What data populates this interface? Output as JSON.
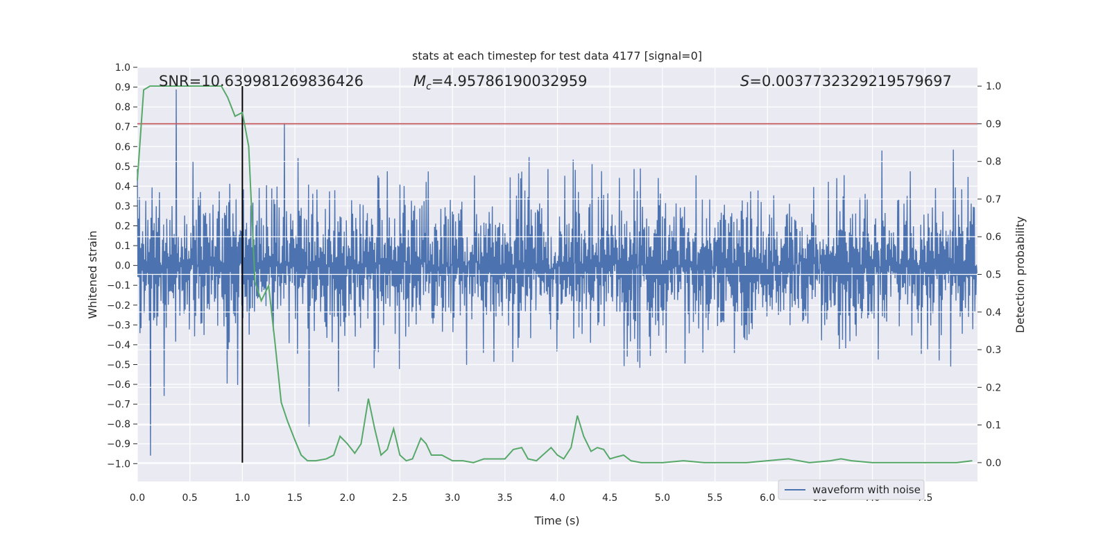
{
  "chart_data": {
    "type": "line",
    "title": "stats at each timestep for test data 4177 [signal=0]",
    "xlabel": "Time (s)",
    "ylabel_left": "Whitened strain",
    "ylabel_right": "Detection probability",
    "xlim": [
      0.0,
      8.0
    ],
    "ylim_left": [
      -1.09,
      1.0
    ],
    "ylim_right": [
      -0.05,
      1.05
    ],
    "x_ticks": [
      0.0,
      0.5,
      1.0,
      1.5,
      2.0,
      2.5,
      3.0,
      3.5,
      4.0,
      4.5,
      5.0,
      5.5,
      6.0,
      6.5,
      7.0,
      7.5
    ],
    "x_tick_labels": [
      "0.0",
      "0.5",
      "1.0",
      "1.5",
      "2.0",
      "2.5",
      "3.0",
      "3.5",
      "4.0",
      "4.5",
      "5.0",
      "5.5",
      "6.0",
      "6.5",
      "7.0",
      "7.5"
    ],
    "y_left_ticks": [
      1.0,
      0.9,
      0.8,
      0.7,
      0.6,
      0.5,
      0.4,
      0.3,
      0.2,
      0.1,
      0.0,
      -0.1,
      -0.2,
      -0.3,
      -0.4,
      -0.5,
      -0.6,
      -0.7,
      -0.8,
      -0.9,
      -1.0
    ],
    "y_left_tick_labels": [
      "1.0",
      "0.9",
      "0.8",
      "0.7",
      "0.6",
      "0.5",
      "0.4",
      "0.3",
      "0.2",
      "0.1",
      "0.0",
      "−0.1",
      "−0.2",
      "−0.3",
      "−0.4",
      "−0.5",
      "−0.6",
      "−0.7",
      "−0.8",
      "−0.9",
      "−1.0"
    ],
    "y_right_ticks": [
      1.0,
      0.9,
      0.8,
      0.7,
      0.6,
      0.5,
      0.4,
      0.3,
      0.2,
      0.1,
      0.0
    ],
    "y_right_tick_labels": [
      "1.0",
      "0.9",
      "0.8",
      "0.7",
      "0.6",
      "0.5",
      "0.4",
      "0.3",
      "0.2",
      "0.1",
      "0.0"
    ],
    "annotations": {
      "snr": "SNR=10.639981269836426",
      "mc_symbol": "M",
      "mc_subscript": "c",
      "mc_value": "=4.95786190032959",
      "s_symbol": "S",
      "s_value": "=0.003773232921957969​7"
    },
    "threshold": {
      "value": 0.9,
      "axis": "right",
      "color": "#c44e52"
    },
    "marker_time": 1.0,
    "waveform": {
      "name": "waveform with noise",
      "color": "#4c72b0",
      "duration": 8.0,
      "n_samples": 1600,
      "typical_envelope": [
        -0.45,
        0.45
      ],
      "max_abs": 0.96
    },
    "detection_probability": {
      "color": "#55a868",
      "t": [
        0.0,
        0.06,
        0.12,
        0.2,
        0.3,
        0.4,
        0.5,
        0.6,
        0.7,
        0.8,
        0.86,
        0.93,
        1.0,
        1.06,
        1.12,
        1.18,
        1.25,
        1.31,
        1.37,
        1.43,
        1.5,
        1.56,
        1.62,
        1.7,
        1.8,
        1.87,
        1.93,
        2.0,
        2.07,
        2.13,
        2.2,
        2.26,
        2.32,
        2.38,
        2.44,
        2.5,
        2.56,
        2.62,
        2.7,
        2.75,
        2.8,
        2.9,
        3.0,
        3.1,
        3.2,
        3.3,
        3.4,
        3.5,
        3.58,
        3.66,
        3.72,
        3.8,
        3.86,
        3.94,
        4.0,
        4.06,
        4.13,
        4.19,
        4.25,
        4.32,
        4.38,
        4.44,
        4.5,
        4.56,
        4.63,
        4.7,
        4.8,
        5.0,
        5.2,
        5.4,
        5.6,
        5.8,
        6.0,
        6.2,
        6.4,
        6.6,
        6.7,
        6.8,
        7.0,
        7.2,
        7.4,
        7.6,
        7.8,
        7.95
      ],
      "p": [
        0.75,
        0.99,
        1.0,
        1.0,
        1.0,
        1.0,
        1.0,
        1.0,
        1.0,
        1.0,
        0.97,
        0.92,
        0.93,
        0.84,
        0.48,
        0.43,
        0.47,
        0.32,
        0.16,
        0.11,
        0.06,
        0.02,
        0.005,
        0.005,
        0.01,
        0.02,
        0.07,
        0.05,
        0.025,
        0.05,
        0.17,
        0.09,
        0.02,
        0.035,
        0.09,
        0.02,
        0.005,
        0.01,
        0.065,
        0.05,
        0.02,
        0.02,
        0.005,
        0.005,
        0.0,
        0.01,
        0.01,
        0.01,
        0.035,
        0.04,
        0.01,
        0.005,
        0.02,
        0.04,
        0.02,
        0.01,
        0.04,
        0.125,
        0.07,
        0.03,
        0.04,
        0.035,
        0.01,
        0.015,
        0.02,
        0.005,
        0.0,
        0.0,
        0.005,
        0.0,
        0.0,
        0.0,
        0.005,
        0.01,
        0.0,
        0.005,
        0.01,
        0.005,
        0.0,
        0.0,
        0.0,
        0.0,
        0.0,
        0.005
      ]
    },
    "legend": {
      "location": "lower-right",
      "entries": [
        "waveform with noise"
      ]
    },
    "grid": true,
    "background": "#eaeaf2"
  }
}
